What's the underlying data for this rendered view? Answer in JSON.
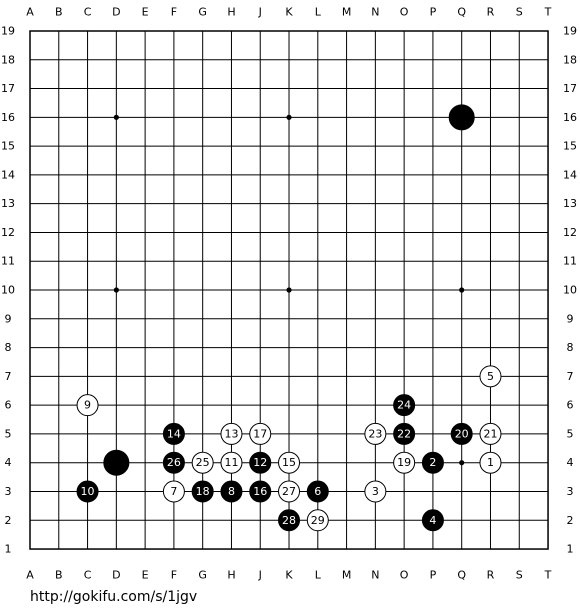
{
  "board": {
    "columns": [
      "A",
      "B",
      "C",
      "D",
      "E",
      "F",
      "G",
      "H",
      "J",
      "K",
      "L",
      "M",
      "N",
      "O",
      "P",
      "Q",
      "R",
      "S",
      "T"
    ],
    "rows": [
      "19",
      "18",
      "17",
      "16",
      "15",
      "14",
      "13",
      "12",
      "11",
      "10",
      "9",
      "8",
      "7",
      "6",
      "5",
      "4",
      "3",
      "2",
      "1"
    ],
    "stones": [
      {
        "col": "Q",
        "row": "16",
        "color": "black"
      },
      {
        "col": "D",
        "row": "4",
        "color": "black"
      },
      {
        "col": "R",
        "row": "7",
        "color": "white",
        "label": "5"
      },
      {
        "col": "C",
        "row": "6",
        "color": "white",
        "label": "9"
      },
      {
        "col": "O",
        "row": "6",
        "color": "black",
        "label": "24"
      },
      {
        "col": "F",
        "row": "5",
        "color": "black",
        "label": "14"
      },
      {
        "col": "H",
        "row": "5",
        "color": "white",
        "label": "13"
      },
      {
        "col": "J",
        "row": "5",
        "color": "white",
        "label": "17"
      },
      {
        "col": "N",
        "row": "5",
        "color": "white",
        "label": "23"
      },
      {
        "col": "O",
        "row": "5",
        "color": "black",
        "label": "22"
      },
      {
        "col": "Q",
        "row": "5",
        "color": "black",
        "label": "20"
      },
      {
        "col": "R",
        "row": "5",
        "color": "white",
        "label": "21"
      },
      {
        "col": "F",
        "row": "4",
        "color": "black",
        "label": "26"
      },
      {
        "col": "G",
        "row": "4",
        "color": "white",
        "label": "25"
      },
      {
        "col": "H",
        "row": "4",
        "color": "white",
        "label": "11"
      },
      {
        "col": "J",
        "row": "4",
        "color": "black",
        "label": "12"
      },
      {
        "col": "K",
        "row": "4",
        "color": "white",
        "label": "15"
      },
      {
        "col": "O",
        "row": "4",
        "color": "white",
        "label": "19"
      },
      {
        "col": "P",
        "row": "4",
        "color": "black",
        "label": "2"
      },
      {
        "col": "R",
        "row": "4",
        "color": "white",
        "label": "1"
      },
      {
        "col": "C",
        "row": "3",
        "color": "black",
        "label": "10"
      },
      {
        "col": "F",
        "row": "3",
        "color": "white",
        "label": "7"
      },
      {
        "col": "G",
        "row": "3",
        "color": "black",
        "label": "18"
      },
      {
        "col": "H",
        "row": "3",
        "color": "black",
        "label": "8"
      },
      {
        "col": "J",
        "row": "3",
        "color": "black",
        "label": "16"
      },
      {
        "col": "K",
        "row": "3",
        "color": "white",
        "label": "27"
      },
      {
        "col": "L",
        "row": "3",
        "color": "black",
        "label": "6"
      },
      {
        "col": "N",
        "row": "3",
        "color": "white",
        "label": "3"
      },
      {
        "col": "K",
        "row": "2",
        "color": "black",
        "label": "28"
      },
      {
        "col": "L",
        "row": "2",
        "color": "white",
        "label": "29"
      },
      {
        "col": "P",
        "row": "2",
        "color": "black",
        "label": "4"
      }
    ]
  },
  "footer": {
    "url": "http://gokifu.com/s/1jgv"
  }
}
